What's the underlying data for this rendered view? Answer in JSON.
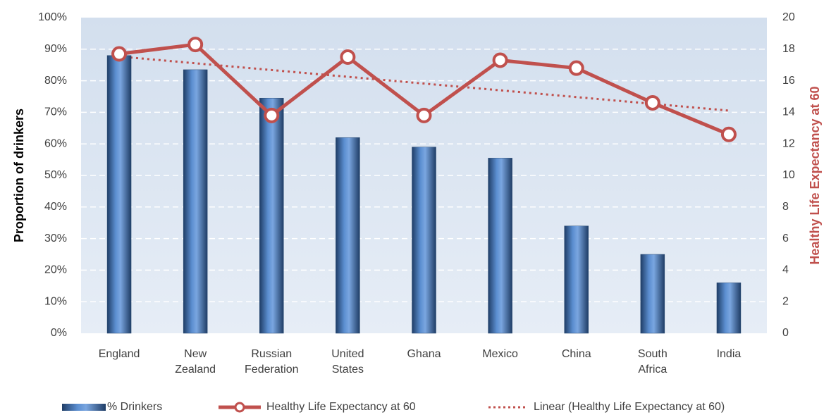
{
  "chart_data": {
    "type": "bar_line",
    "categories": [
      "England",
      "New Zealand",
      "Russian Federation",
      "United States",
      "Ghana",
      "Mexico",
      "China",
      "South Africa",
      "India"
    ],
    "series": [
      {
        "name": "% Drinkers",
        "type": "bar",
        "color": "#4f81bd",
        "values": [
          88,
          83.5,
          74.5,
          62,
          59,
          55.5,
          34,
          25,
          16
        ]
      },
      {
        "name": "Healthy Life Expectancy at 60",
        "type": "line",
        "axis": "y2",
        "color": "#c0504d",
        "values": [
          17.7,
          18.3,
          13.8,
          17.5,
          13.8,
          17.3,
          16.8,
          14.6,
          12.6
        ]
      },
      {
        "name": "Linear (Healthy Life Expectancy at 60)",
        "type": "trendline",
        "axis": "y2",
        "color": "#c0504d"
      }
    ],
    "ylabel": "Proportion of drinkers",
    "y2label": "Healthy Life Expectancy at 60",
    "ylim": [
      0,
      100
    ],
    "yticks": [
      {
        "value": 0,
        "label": "0%"
      },
      {
        "value": 10,
        "label": "10%"
      },
      {
        "value": 20,
        "label": "20%"
      },
      {
        "value": 30,
        "label": "30%"
      },
      {
        "value": 40,
        "label": "40%"
      },
      {
        "value": 50,
        "label": "50%"
      },
      {
        "value": 60,
        "label": "60%"
      },
      {
        "value": 70,
        "label": "70%"
      },
      {
        "value": 80,
        "label": "80%"
      },
      {
        "value": 90,
        "label": "90%"
      },
      {
        "value": 100,
        "label": "100%"
      }
    ],
    "y2lim": [
      0,
      20
    ],
    "y2ticks": [
      0,
      2,
      4,
      6,
      8,
      10,
      12,
      14,
      16,
      18,
      20
    ],
    "grid": true,
    "legend": "bottom"
  }
}
